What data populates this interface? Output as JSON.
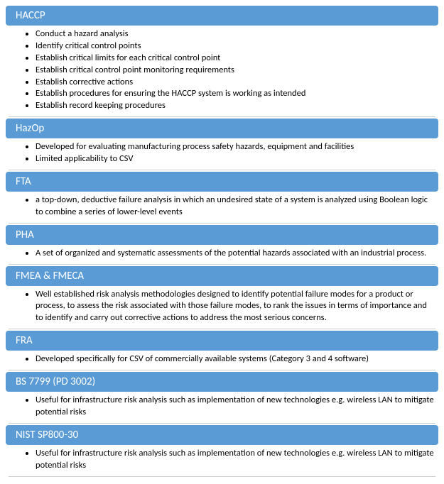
{
  "header_bg": "#5b9bd5",
  "header_fg": "#ffffff",
  "body_fg": "#000000",
  "border_color": "#cfcfcf",
  "sections": [
    {
      "title": "HACCP",
      "items": [
        "Conduct a hazard analysis",
        "Identify critical control points",
        "Establish critical limits for each critical control point",
        "Establish critical control point monitoring requirements",
        "Establish corrective actions",
        "Establish procedures for ensuring the HACCP system is working as intended",
        "Establish record keeping procedures"
      ]
    },
    {
      "title": "HazOp",
      "items": [
        "Developed for evaluating manufacturing process safety hazards, equipment and facilities",
        "Limited applicability to CSV"
      ]
    },
    {
      "title": "FTA",
      "items": [
        "a top-down, deductive failure analysis in which an undesired state of a system is analyzed using Boolean logic to combine a series of lower-level events"
      ]
    },
    {
      "title": "PHA",
      "items": [
        "A set of organized and systematic assessments of the potential hazards associated with an industrial process."
      ]
    },
    {
      "title": "FMEA & FMECA",
      "items": [
        "Well established risk analysis methodologies designed to identify potential failure modes for a product or process, to assess the risk associated with those failure modes, to rank the issues in terms of importance and to identify and carry out corrective actions to address the most serious concerns."
      ]
    },
    {
      "title": "FRA",
      "items": [
        "Developed specifically for CSV of commercially available systems (Category 3 and 4 software)"
      ]
    },
    {
      "title": "BS 7799 (PD 3002)",
      "items": [
        "Useful for infrastructure risk analysis such as implementation of new technologies e.g. wireless LAN to mitigate potential risks"
      ]
    },
    {
      "title": "NIST SP800-30",
      "items": [
        "Useful for infrastructure risk analysis such as implementation of new technologies e.g. wireless LAN to mitigate potential risks"
      ]
    }
  ]
}
